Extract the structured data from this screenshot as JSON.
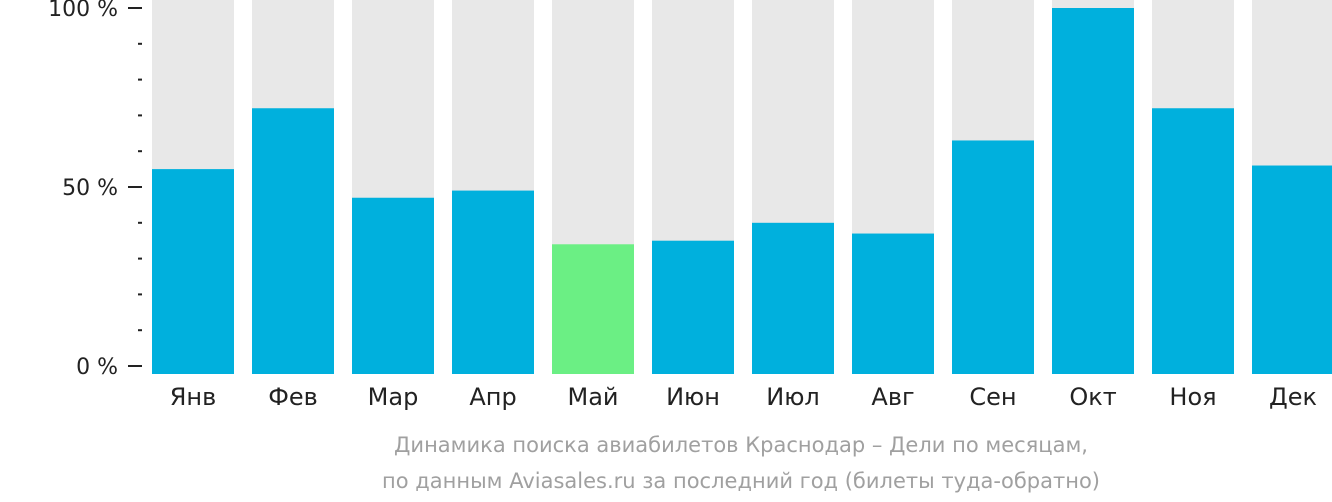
{
  "chart_data": {
    "type": "bar",
    "categories": [
      "Янв",
      "Фев",
      "Мар",
      "Апр",
      "Май",
      "Июн",
      "Июл",
      "Авг",
      "Сен",
      "Окт",
      "Ноя",
      "Дек"
    ],
    "values": [
      55,
      72,
      47,
      49,
      34,
      35,
      40,
      37,
      63,
      100,
      72,
      56
    ],
    "ylim": [
      0,
      100
    ],
    "y_ticks": [
      {
        "value": 100,
        "label": "100 %"
      },
      {
        "value": 50,
        "label": "50 %"
      },
      {
        "value": 0,
        "label": "0 %"
      }
    ],
    "minor_tick_step": 10,
    "highlight_index": 4,
    "caption": [
      "Динамика поиска авиабилетов Краснодар – Дели по месяцам,",
      "по данным Aviasales.ru за последний год (билеты туда-обратно)"
    ],
    "colors": {
      "bar": "#00b0dd",
      "highlight": "#6bef84",
      "track": "#e8e8e8",
      "axis": "#222222"
    }
  }
}
